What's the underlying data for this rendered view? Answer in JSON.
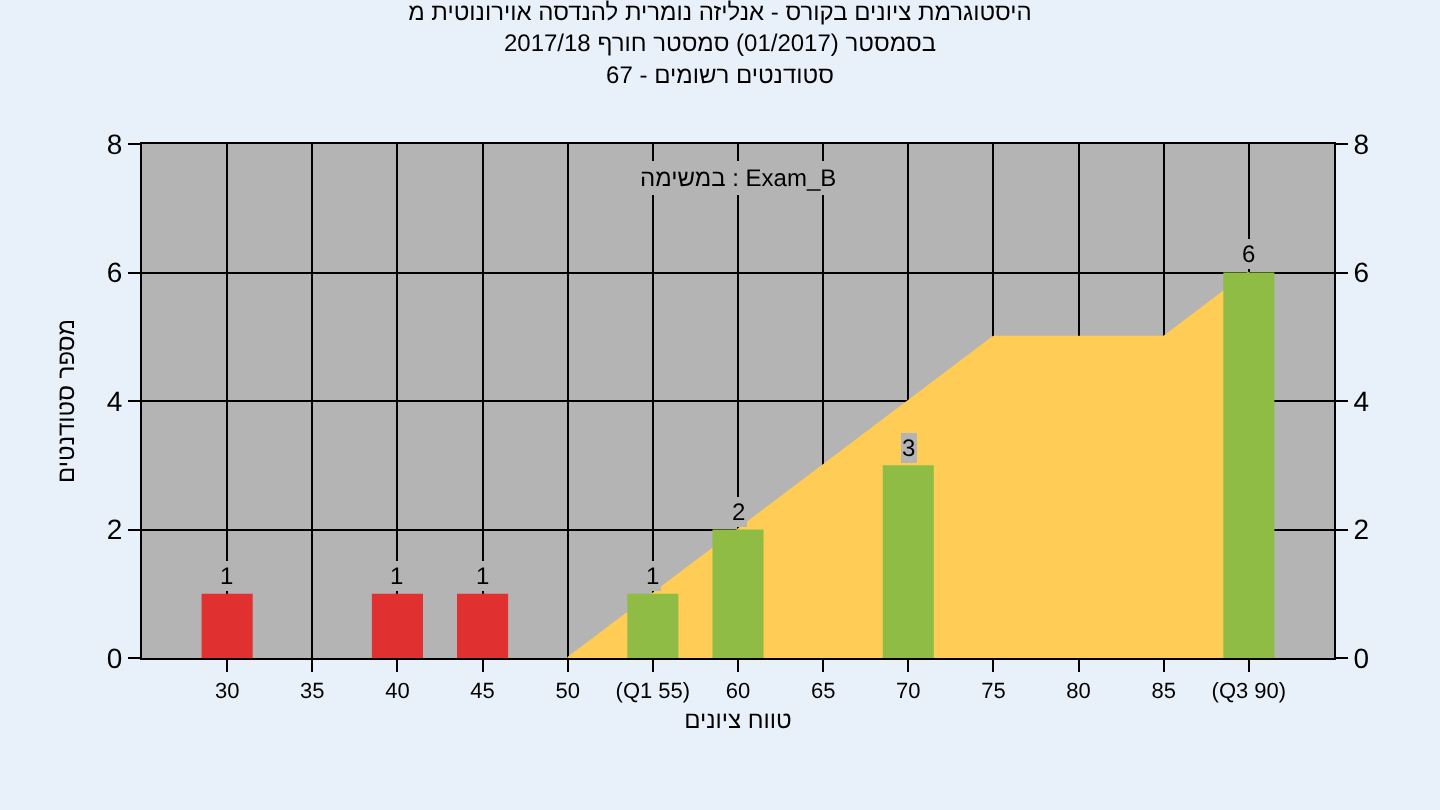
{
  "chart_data": {
    "type": "bar",
    "title": "היסטוגרמת ציונים בקורס - אנליזה נומרית להנדסה אוירונוטית מ",
    "subtitle": [
      "בסמסטר (01/2017) סמסטר חורף 2017/18",
      "סטודנטים רשומים - 67"
    ],
    "xlabel": "טווח ציונים",
    "ylabel": "מספר סטודנטים",
    "annotations": [
      "במשימה : Exam_B"
    ],
    "series": [
      {
        "type": "area",
        "color": "#ffcc55",
        "x": [
          50,
          55,
          60,
          65,
          70,
          75,
          80,
          85,
          90
        ],
        "values": [
          0,
          1,
          2,
          3,
          4,
          5,
          5,
          5,
          6
        ]
      },
      {
        "x": [
          30,
          40,
          45,
          55,
          60,
          70,
          90
        ],
        "values": [
          1,
          1,
          1,
          1,
          2,
          3,
          6
        ],
        "value_labels": [
          "1",
          "1",
          "1",
          "1",
          "2",
          "3",
          "6"
        ],
        "colors": [
          "#e03030",
          "#e03030",
          "#e03030",
          "#8fbc45",
          "#8fbc45",
          "#8fbc45",
          "#8fbc45"
        ]
      }
    ],
    "xlim": [
      25,
      95
    ],
    "xticks": [
      30,
      35,
      40,
      45,
      50,
      {
        "value": 55,
        "label": "(Q1 55)"
      },
      60,
      65,
      70,
      75,
      80,
      85,
      {
        "value": 90,
        "label": "(Q3 90)"
      }
    ],
    "ylim": [
      0,
      8
    ],
    "yticks": [
      0,
      2,
      4,
      6,
      8
    ],
    "y2lim": [
      0,
      8
    ],
    "y2ticks": [
      0,
      2,
      4,
      6,
      8
    ],
    "grid": true
  }
}
